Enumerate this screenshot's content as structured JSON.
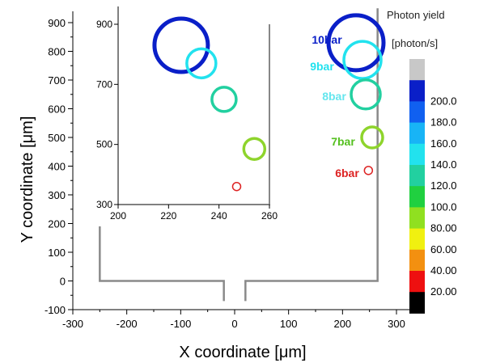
{
  "chart_data": [
    {
      "type": "scatter",
      "marker": "hollow-circle",
      "xlabel": "X  coordinate [μm]",
      "ylabel": "Y coordinate [μm]",
      "xlim": [
        -300,
        340
      ],
      "ylim": [
        -100,
        950
      ],
      "xticks": [
        "-300",
        "-200",
        "-100",
        "0",
        "100",
        "200",
        "300"
      ],
      "yticks": [
        "-100",
        "0",
        "100",
        "200",
        "300",
        "400",
        "500",
        "600",
        "700",
        "800",
        "900"
      ],
      "points": [
        {
          "label": "10bar",
          "x": 225,
          "y": 830,
          "color": "#0a1fc8"
        },
        {
          "label": "9bar",
          "x": 237,
          "y": 770,
          "color": "#22e2ee"
        },
        {
          "label": "8bar",
          "x": 243,
          "y": 650,
          "color": "#22d0a0"
        },
        {
          "label": "7bar",
          "x": 255,
          "y": 500,
          "color": "#8ed42c"
        },
        {
          "label": "6bar",
          "x": 248,
          "y": 385,
          "color": "#dd2222"
        }
      ],
      "point_labels": [
        {
          "text": "10bar",
          "color": "#0a1fc8"
        },
        {
          "text": "9bar",
          "color": "#22e2ee"
        },
        {
          "text": "8bar",
          "color": "#66e6ee"
        },
        {
          "text": "7bar",
          "color": "#55c020"
        },
        {
          "text": "6bar",
          "color": "#dd2222"
        }
      ]
    },
    {
      "type": "scatter",
      "inset": true,
      "marker": "hollow-circle",
      "xlim": [
        200,
        260
      ],
      "ylim": [
        300,
        950
      ],
      "xticks": [
        "200",
        "220",
        "240",
        "260"
      ],
      "yticks": [
        "300",
        "500",
        "700",
        "900"
      ],
      "points": [
        {
          "x": 225,
          "y": 830,
          "color": "#0a1fc8"
        },
        {
          "x": 233,
          "y": 770,
          "color": "#22e2ee"
        },
        {
          "x": 242,
          "y": 650,
          "color": "#22d0a0"
        },
        {
          "x": 254,
          "y": 485,
          "color": "#8ed42c"
        },
        {
          "x": 247,
          "y": 360,
          "color": "#dd2222"
        }
      ]
    }
  ],
  "colorbar": {
    "title_line1": "Photon yield",
    "title_line2": "[photon/s]",
    "levels": [
      {
        "label": "",
        "color": "#c8c8c8"
      },
      {
        "label": "200.0",
        "color": "#0a1fc8"
      },
      {
        "label": "180.0",
        "color": "#1060f0"
      },
      {
        "label": "160.0",
        "color": "#18b4f6"
      },
      {
        "label": "140.0",
        "color": "#22e2ee"
      },
      {
        "label": "120.0",
        "color": "#22d0a0"
      },
      {
        "label": "100.0",
        "color": "#20d040"
      },
      {
        "label": "80.00",
        "color": "#90e020"
      },
      {
        "label": "60.00",
        "color": "#f0f010"
      },
      {
        "label": "40.00",
        "color": "#f39010"
      },
      {
        "label": "20.00",
        "color": "#ee1010"
      },
      {
        "label": "",
        "color": "#000000"
      }
    ]
  }
}
